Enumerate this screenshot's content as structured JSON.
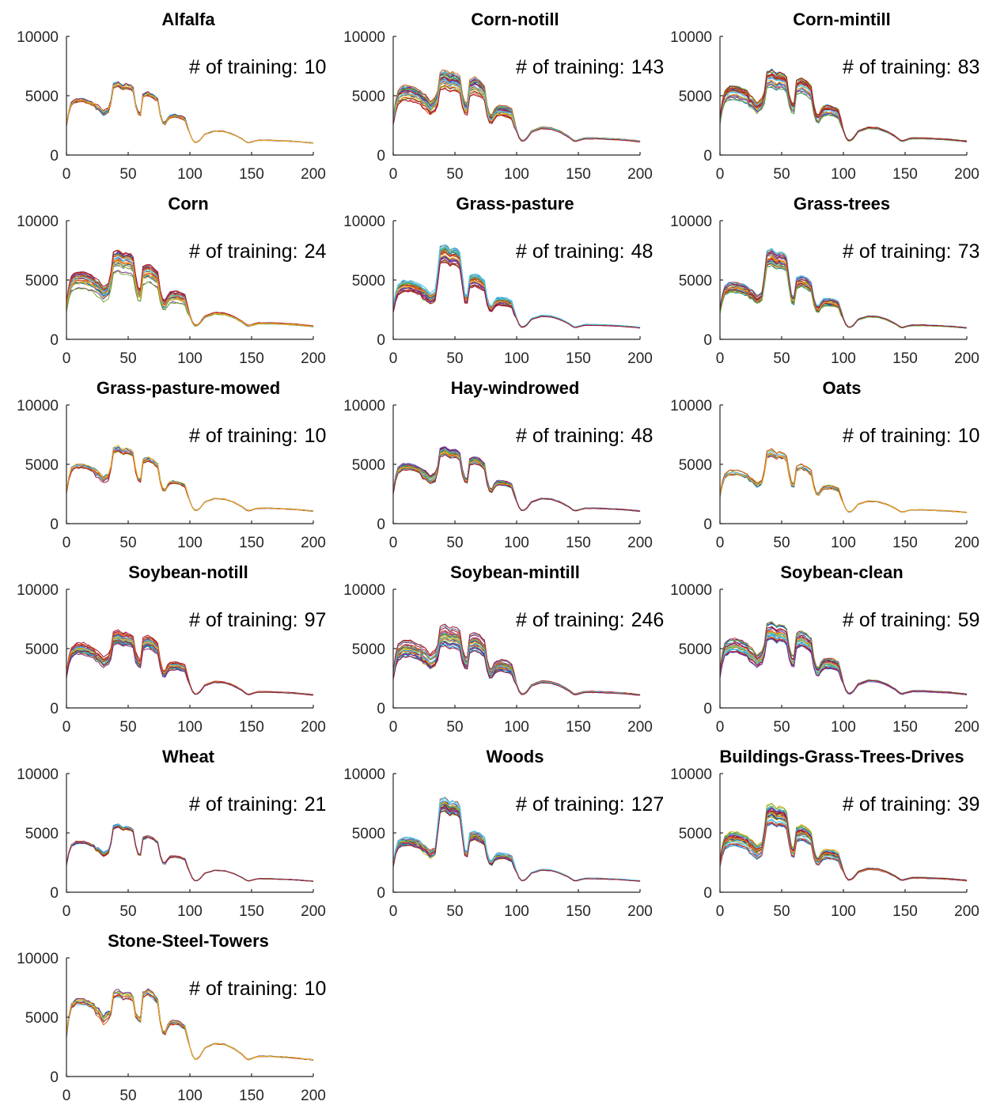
{
  "palette": [
    "#0072BD",
    "#D95319",
    "#EDB120",
    "#7E2F8E",
    "#77AC30",
    "#4DBEEE",
    "#A2142F"
  ],
  "annotation_label": "# of training:",
  "chart_data": [
    {
      "type": "line",
      "title": "Alfalfa",
      "training_count": 10,
      "xlim": [
        0,
        200
      ],
      "ylim": [
        0,
        10000
      ],
      "xticks": [
        0,
        50,
        100,
        150,
        200
      ],
      "yticks": [
        0,
        5000,
        10000
      ],
      "series_count": 10,
      "base_level": 4600,
      "peak_level": 6000,
      "spread": 300
    },
    {
      "type": "line",
      "title": "Corn-notill",
      "training_count": 143,
      "xlim": [
        0,
        200
      ],
      "ylim": [
        0,
        10000
      ],
      "xticks": [
        0,
        50,
        100,
        150,
        200
      ],
      "yticks": [
        0,
        5000,
        10000
      ],
      "series_count": 143,
      "base_level": 5200,
      "peak_level": 6200,
      "spread": 1300
    },
    {
      "type": "line",
      "title": "Corn-mintill",
      "training_count": 83,
      "xlim": [
        0,
        200
      ],
      "ylim": [
        0,
        10000
      ],
      "xticks": [
        0,
        50,
        100,
        150,
        200
      ],
      "yticks": [
        0,
        5000,
        10000
      ],
      "series_count": 83,
      "base_level": 5200,
      "peak_level": 6300,
      "spread": 1200
    },
    {
      "type": "line",
      "title": "Corn",
      "training_count": 24,
      "xlim": [
        0,
        200
      ],
      "ylim": [
        0,
        10000
      ],
      "xticks": [
        0,
        50,
        100,
        150,
        200
      ],
      "yticks": [
        0,
        5000,
        10000
      ],
      "series_count": 24,
      "base_level": 5000,
      "peak_level": 6800,
      "spread": 1500
    },
    {
      "type": "line",
      "title": "Grass-pasture",
      "training_count": 48,
      "xlim": [
        0,
        200
      ],
      "ylim": [
        0,
        10000
      ],
      "xticks": [
        0,
        50,
        100,
        150,
        200
      ],
      "yticks": [
        0,
        5000,
        10000
      ],
      "series_count": 48,
      "base_level": 4500,
      "peak_level": 8000,
      "spread": 1000
    },
    {
      "type": "line",
      "title": "Grass-trees",
      "training_count": 73,
      "xlim": [
        0,
        200
      ],
      "ylim": [
        0,
        10000
      ],
      "xticks": [
        0,
        50,
        100,
        150,
        200
      ],
      "yticks": [
        0,
        5000,
        10000
      ],
      "series_count": 73,
      "base_level": 4400,
      "peak_level": 7600,
      "spread": 900
    },
    {
      "type": "line",
      "title": "Grass-pasture-mowed",
      "training_count": 10,
      "xlim": [
        0,
        200
      ],
      "ylim": [
        0,
        10000
      ],
      "xticks": [
        0,
        50,
        100,
        150,
        200
      ],
      "yticks": [
        0,
        5000,
        10000
      ],
      "series_count": 10,
      "base_level": 4800,
      "peak_level": 6300,
      "spread": 400
    },
    {
      "type": "line",
      "title": "Hay-windrowed",
      "training_count": 48,
      "xlim": [
        0,
        200
      ],
      "ylim": [
        0,
        10000
      ],
      "xticks": [
        0,
        50,
        100,
        150,
        200
      ],
      "yticks": [
        0,
        5000,
        10000
      ],
      "series_count": 48,
      "base_level": 4800,
      "peak_level": 6100,
      "spread": 500
    },
    {
      "type": "line",
      "title": "Oats",
      "training_count": 10,
      "xlim": [
        0,
        200
      ],
      "ylim": [
        0,
        10000
      ],
      "xticks": [
        0,
        50,
        100,
        150,
        200
      ],
      "yticks": [
        0,
        5000,
        10000
      ],
      "series_count": 10,
      "base_level": 4300,
      "peak_level": 6200,
      "spread": 400
    },
    {
      "type": "line",
      "title": "Soybean-notill",
      "training_count": 97,
      "xlim": [
        0,
        200
      ],
      "ylim": [
        0,
        10000
      ],
      "xticks": [
        0,
        50,
        100,
        150,
        200
      ],
      "yticks": [
        0,
        5000,
        10000
      ],
      "series_count": 97,
      "base_level": 5000,
      "peak_level": 5800,
      "spread": 1000
    },
    {
      "type": "line",
      "title": "Soybean-mintill",
      "training_count": 246,
      "xlim": [
        0,
        200
      ],
      "ylim": [
        0,
        10000
      ],
      "xticks": [
        0,
        50,
        100,
        150,
        200
      ],
      "yticks": [
        0,
        5000,
        10000
      ],
      "series_count": 246,
      "base_level": 5000,
      "peak_level": 6000,
      "spread": 1400
    },
    {
      "type": "line",
      "title": "Soybean-clean",
      "training_count": 59,
      "xlim": [
        0,
        200
      ],
      "ylim": [
        0,
        10000
      ],
      "xticks": [
        0,
        50,
        100,
        150,
        200
      ],
      "yticks": [
        0,
        5000,
        10000
      ],
      "series_count": 59,
      "base_level": 5200,
      "peak_level": 6400,
      "spread": 1300
    },
    {
      "type": "line",
      "title": "Wheat",
      "training_count": 21,
      "xlim": [
        0,
        200
      ],
      "ylim": [
        0,
        10000
      ],
      "xticks": [
        0,
        50,
        100,
        150,
        200
      ],
      "yticks": [
        0,
        5000,
        10000
      ],
      "series_count": 21,
      "base_level": 4200,
      "peak_level": 5700,
      "spread": 150
    },
    {
      "type": "line",
      "title": "Woods",
      "training_count": 127,
      "xlim": [
        0,
        200
      ],
      "ylim": [
        0,
        10000
      ],
      "xticks": [
        0,
        50,
        100,
        150,
        200
      ],
      "yticks": [
        0,
        5000,
        10000
      ],
      "series_count": 127,
      "base_level": 4300,
      "peak_level": 8300,
      "spread": 700
    },
    {
      "type": "line",
      "title": "Buildings-Grass-Trees-Drives",
      "training_count": 39,
      "xlim": [
        0,
        200
      ],
      "ylim": [
        0,
        10000
      ],
      "xticks": [
        0,
        50,
        100,
        150,
        200
      ],
      "yticks": [
        0,
        5000,
        10000
      ],
      "series_count": 39,
      "base_level": 4500,
      "peak_level": 7000,
      "spread": 1200
    },
    {
      "type": "line",
      "title": "Stone-Steel-Towers",
      "training_count": 10,
      "xlim": [
        0,
        200
      ],
      "ylim": [
        0,
        10000
      ],
      "xticks": [
        0,
        50,
        100,
        150,
        200
      ],
      "yticks": [
        0,
        5000,
        10000
      ],
      "series_count": 10,
      "base_level": 6300,
      "peak_level": 6500,
      "spread": 500
    }
  ]
}
